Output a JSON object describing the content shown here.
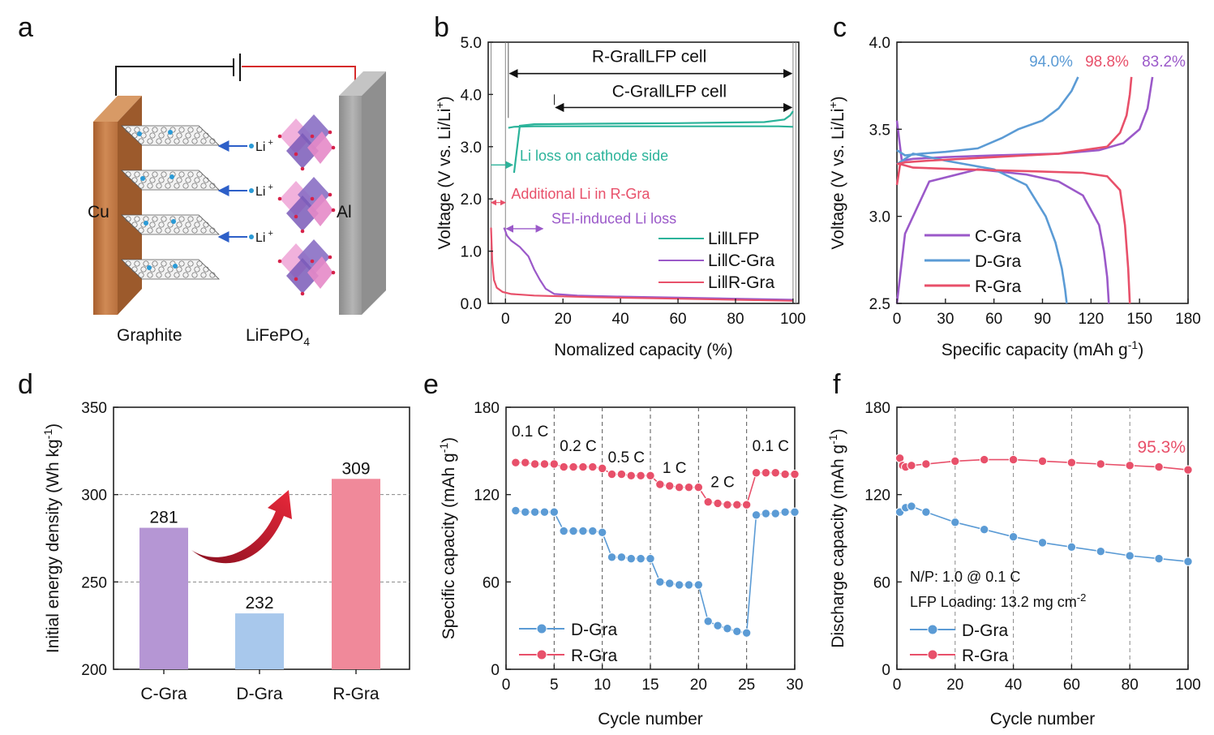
{
  "panel_labels": [
    "a",
    "b",
    "c",
    "d",
    "e",
    "f"
  ],
  "panel_a": {
    "cu_label": "Cu",
    "al_label": "Al",
    "graphite_label": "Graphite",
    "lfp_label": "LiFePO",
    "lfp_sub": "4",
    "li_ion_label": "Li",
    "li_ion_sup": "+",
    "colors": {
      "cu": "#c77d4a",
      "al": "#a8a8a8",
      "wire_red": "#d62b2b",
      "wire_black": "#111111",
      "li_arrow": "#2d5fc8"
    }
  },
  "chart_data": [
    {
      "id": "b",
      "type": "line",
      "xlabel": "Nomalized capacity (%)",
      "ylabel": "Voltage (V vs. Li/Li⁺)",
      "ylabel_main": "Voltage (V vs. Li/Li",
      "ylabel_sup": "+",
      "ylabel_end": ")",
      "xlim": [
        -6,
        102
      ],
      "ylim": [
        0,
        5
      ],
      "xticks": [
        0,
        20,
        40,
        60,
        80,
        100
      ],
      "yticks": [
        "0.0",
        "1.0",
        "2.0",
        "3.0",
        "4.0",
        "5.0"
      ],
      "yticks_num": [
        0,
        1,
        2,
        3,
        4,
        5
      ],
      "legend": [
        "Li‖LFP",
        "Li‖C-Gra",
        "Li‖R-Gra"
      ],
      "legend_loc": "bottom-right",
      "annotations": {
        "r_cell": "R-Gra‖LFP cell",
        "c_cell": "C-Gra‖LFP cell",
        "li_loss": "Li loss on cathode side",
        "additional": "Additional Li in R-Gra",
        "sei": "SEI-induced Li loss"
      },
      "series": [
        {
          "name": "Li‖LFP charge",
          "color": "#2bb39a",
          "x": [
            3,
            5,
            10,
            30,
            60,
            90,
            97,
            99,
            100
          ],
          "y": [
            2.5,
            3.4,
            3.43,
            3.44,
            3.45,
            3.47,
            3.52,
            3.6,
            3.68
          ]
        },
        {
          "name": "Li‖LFP discharge",
          "color": "#2bb39a",
          "x": [
            1,
            3,
            10,
            40,
            70,
            95,
            100
          ],
          "y": [
            3.36,
            3.38,
            3.39,
            3.39,
            3.39,
            3.39,
            3.38
          ]
        },
        {
          "name": "Li‖C-Gra",
          "color": "#9b59c9",
          "x": [
            -0.5,
            0,
            0.5,
            2,
            5,
            8,
            10,
            12,
            14,
            17,
            25,
            40,
            60,
            80,
            100
          ],
          "y": [
            1.45,
            1.38,
            1.3,
            1.2,
            1.08,
            0.9,
            0.65,
            0.45,
            0.28,
            0.18,
            0.15,
            0.13,
            0.11,
            0.09,
            0.07
          ]
        },
        {
          "name": "Li‖R-Gra",
          "color": "#e8506a",
          "x": [
            -5,
            -4.6,
            -4,
            -3,
            -1,
            2,
            10,
            30,
            60,
            100
          ],
          "y": [
            1.45,
            0.8,
            0.45,
            0.3,
            0.22,
            0.18,
            0.15,
            0.12,
            0.09,
            0.05
          ]
        }
      ]
    },
    {
      "id": "c",
      "type": "line",
      "xlabel": "Specific capacity (mAh g⁻¹)",
      "xlabel_main": "Specific capacity (mAh g",
      "xlabel_sup": "-1",
      "xlabel_end": ")",
      "ylabel": "Voltage (V vs. Li/Li⁺)",
      "ylabel_main": "Voltage (V vs. Li/Li",
      "ylabel_sup": "+",
      "ylabel_end": ")",
      "xlim": [
        0,
        180
      ],
      "ylim": [
        2.5,
        4.0
      ],
      "xticks": [
        0,
        30,
        60,
        90,
        120,
        150,
        180
      ],
      "yticks": [
        "2.5",
        "3.0",
        "3.5",
        "4.0"
      ],
      "yticks_num": [
        2.5,
        3.0,
        3.5,
        4.0
      ],
      "legend": [
        "C-Gra",
        "D-Gra",
        "R-Gra"
      ],
      "legend_loc": "bottom-left",
      "efficiency_labels": [
        {
          "text": "94.0%",
          "color": "#5b9bd5"
        },
        {
          "text": "98.8%",
          "color": "#e8506a"
        },
        {
          "text": "83.2%",
          "color": "#9b59c9"
        }
      ],
      "series": [
        {
          "name": "C-Gra charge",
          "color": "#9b59c9",
          "x": [
            0,
            3,
            10,
            30,
            60,
            100,
            125,
            140,
            150,
            155,
            158
          ],
          "y": [
            3.55,
            3.32,
            3.33,
            3.34,
            3.35,
            3.36,
            3.38,
            3.42,
            3.5,
            3.62,
            3.8
          ]
        },
        {
          "name": "C-Gra discharge",
          "color": "#9b59c9",
          "x": [
            0,
            5,
            20,
            50,
            80,
            100,
            115,
            125,
            128,
            130,
            131
          ],
          "y": [
            2.5,
            2.9,
            3.2,
            3.27,
            3.24,
            3.2,
            3.12,
            2.95,
            2.8,
            2.65,
            2.5
          ]
        },
        {
          "name": "D-Gra charge",
          "color": "#5b9bd5",
          "x": [
            0,
            5,
            15,
            30,
            50,
            65,
            75,
            90,
            100,
            108,
            112
          ],
          "y": [
            3.38,
            3.35,
            3.36,
            3.37,
            3.39,
            3.45,
            3.5,
            3.55,
            3.62,
            3.72,
            3.8
          ]
        },
        {
          "name": "D-Gra discharge",
          "color": "#5b9bd5",
          "x": [
            0,
            10,
            30,
            60,
            80,
            92,
            98,
            102,
            104,
            105
          ],
          "y": [
            3.3,
            3.36,
            3.32,
            3.27,
            3.18,
            3.0,
            2.85,
            2.7,
            2.58,
            2.5
          ]
        },
        {
          "name": "R-Gra charge",
          "color": "#e8506a",
          "x": [
            0,
            5,
            20,
            60,
            100,
            130,
            138,
            142,
            144,
            145
          ],
          "y": [
            3.3,
            3.31,
            3.32,
            3.34,
            3.36,
            3.4,
            3.48,
            3.58,
            3.7,
            3.8
          ]
        },
        {
          "name": "R-Gra discharge",
          "color": "#e8506a",
          "x": [
            0,
            2,
            10,
            40,
            80,
            115,
            130,
            138,
            141,
            143,
            144
          ],
          "y": [
            3.18,
            3.3,
            3.28,
            3.27,
            3.26,
            3.25,
            3.23,
            3.15,
            2.95,
            2.7,
            2.5
          ]
        }
      ]
    },
    {
      "id": "d",
      "type": "bar",
      "categories": [
        "C-Gra",
        "D-Gra",
        "R-Gra"
      ],
      "values": [
        281,
        232,
        309
      ],
      "value_labels": [
        "281",
        "232",
        "309"
      ],
      "colors": [
        "#b596d4",
        "#a8c8ec",
        "#f0899a"
      ],
      "ylabel_main": "Initial energy density (Wh kg",
      "ylabel_sup": "-1",
      "ylabel_end": ")",
      "ylim": [
        200,
        350
      ],
      "yticks": [
        "200",
        "250",
        "300",
        "350"
      ],
      "yticks_num": [
        200,
        250,
        300,
        350
      ],
      "gridlines": [
        250,
        300
      ],
      "arrow_color": "#c91d2a"
    },
    {
      "id": "e",
      "type": "scatter",
      "xlabel": "Cycle number",
      "ylabel_main": "Specific capacity (mAh g",
      "ylabel_sup": "-1",
      "ylabel_end": ")",
      "xlim": [
        0,
        30
      ],
      "ylim": [
        0,
        180
      ],
      "xticks": [
        0,
        5,
        10,
        15,
        20,
        25,
        30
      ],
      "yticks": [
        "0",
        "60",
        "120",
        "180"
      ],
      "yticks_num": [
        0,
        60,
        120,
        180
      ],
      "rate_labels": [
        "0.1 C",
        "0.2 C",
        "0.5 C",
        "1 C",
        "2 C",
        "0.1 C"
      ],
      "rate_boundaries": [
        5,
        10,
        15,
        20,
        25
      ],
      "legend": [
        "D-Gra",
        "R-Gra"
      ],
      "legend_loc": "bottom-left",
      "series": [
        {
          "name": "D-Gra",
          "color": "#5b9bd5",
          "x": [
            1,
            2,
            3,
            4,
            5,
            6,
            7,
            8,
            9,
            10,
            11,
            12,
            13,
            14,
            15,
            16,
            17,
            18,
            19,
            20,
            21,
            22,
            23,
            24,
            25,
            26,
            27,
            28,
            29,
            30
          ],
          "y": [
            109,
            108,
            108,
            108,
            108,
            95,
            95,
            95,
            95,
            94,
            77,
            77,
            76,
            76,
            76,
            60,
            59,
            58,
            58,
            58,
            33,
            30,
            28,
            26,
            25,
            106,
            107,
            107,
            108,
            108
          ]
        },
        {
          "name": "R-Gra",
          "color": "#e8506a",
          "x": [
            1,
            2,
            3,
            4,
            5,
            6,
            7,
            8,
            9,
            10,
            11,
            12,
            13,
            14,
            15,
            16,
            17,
            18,
            19,
            20,
            21,
            22,
            23,
            24,
            25,
            26,
            27,
            28,
            29,
            30
          ],
          "y": [
            142,
            142,
            141,
            141,
            141,
            139,
            139,
            139,
            139,
            138,
            134,
            134,
            133,
            133,
            133,
            127,
            126,
            125,
            125,
            125,
            115,
            114,
            113,
            113,
            113,
            135,
            135,
            135,
            134,
            134
          ]
        }
      ]
    },
    {
      "id": "f",
      "type": "scatter",
      "xlabel": "Cycle number",
      "ylabel_main": "Discharge capacity (mAh g",
      "ylabel_sup": "-1",
      "ylabel_end": ")",
      "xlim": [
        0,
        100
      ],
      "ylim": [
        0,
        180
      ],
      "xticks": [
        0,
        20,
        40,
        60,
        80,
        100
      ],
      "yticks": [
        "0",
        "60",
        "120",
        "180"
      ],
      "yticks_num": [
        0,
        60,
        120,
        180
      ],
      "gridlines_x": [
        20,
        40,
        60,
        80
      ],
      "retention_label": "95.3%",
      "retention_color": "#e8506a",
      "np_label": "N/P: 1.0 @ 0.1 C",
      "loading_label_main": "LFP Loading: 13.2 mg cm",
      "loading_label_sup": "-2",
      "legend": [
        "D-Gra",
        "R-Gra"
      ],
      "legend_loc": "bottom-left",
      "series": [
        {
          "name": "D-Gra",
          "color": "#5b9bd5",
          "x": [
            1,
            3,
            5,
            10,
            20,
            30,
            40,
            50,
            60,
            70,
            80,
            90,
            100
          ],
          "y": [
            108,
            111,
            112,
            108,
            101,
            96,
            91,
            87,
            84,
            81,
            78,
            76,
            74
          ]
        },
        {
          "name": "R-Gra",
          "color": "#e8506a",
          "x": [
            1,
            2,
            3,
            5,
            10,
            20,
            30,
            40,
            50,
            60,
            70,
            80,
            90,
            100
          ],
          "y": [
            145,
            140,
            139,
            140,
            141,
            143,
            144,
            144,
            143,
            142,
            141,
            140,
            139,
            137
          ]
        }
      ]
    }
  ]
}
